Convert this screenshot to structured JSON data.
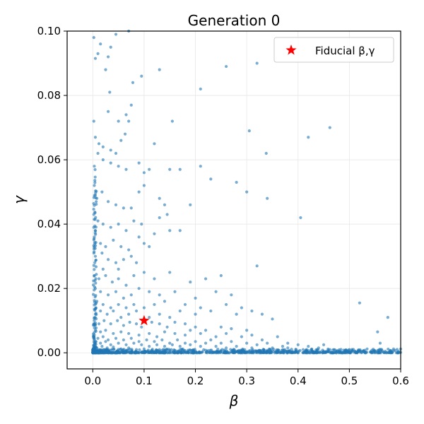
{
  "chart_data": {
    "type": "scatter",
    "title": "Generation 0",
    "xlabel": "β",
    "ylabel": "γ",
    "xlim": [
      -0.05,
      0.6
    ],
    "ylim": [
      -0.005,
      0.1
    ],
    "xticks": [
      0.0,
      0.1,
      0.2,
      0.3,
      0.4,
      0.5,
      0.6
    ],
    "xtick_labels": [
      "0.0",
      "0.1",
      "0.2",
      "0.3",
      "0.4",
      "0.5",
      "0.6"
    ],
    "yticks": [
      0.0,
      0.02,
      0.04,
      0.06,
      0.08,
      0.1
    ],
    "ytick_labels": [
      "0.00",
      "0.02",
      "0.04",
      "0.06",
      "0.08",
      "0.10"
    ],
    "grid": true,
    "legend_position": "top-right",
    "series": [
      {
        "name": "",
        "color": "#1f77b4",
        "points": [
          [
            0.002,
            0.098
          ],
          [
            0.015,
            0.096
          ],
          [
            0.045,
            0.099
          ],
          [
            0.07,
            0.1
          ],
          [
            0.035,
            0.095
          ],
          [
            0.03,
            0.092
          ],
          [
            0.01,
            0.093
          ],
          [
            0.025,
            0.088
          ],
          [
            0.078,
            0.084
          ],
          [
            0.095,
            0.086
          ],
          [
            0.13,
            0.088
          ],
          [
            0.26,
            0.089
          ],
          [
            0.32,
            0.09
          ],
          [
            0.005,
            0.0915
          ],
          [
            0.033,
            0.081
          ],
          [
            0.07,
            0.072
          ],
          [
            0.075,
            0.077
          ],
          [
            0.21,
            0.082
          ],
          [
            0.05,
            0.072
          ],
          [
            0.065,
            0.074
          ],
          [
            0.03,
            0.075
          ],
          [
            0.002,
            0.072
          ],
          [
            0.155,
            0.072
          ],
          [
            0.305,
            0.069
          ],
          [
            0.42,
            0.067
          ],
          [
            0.462,
            0.07
          ],
          [
            0.005,
            0.067
          ],
          [
            0.012,
            0.065
          ],
          [
            0.01,
            0.062
          ],
          [
            0.02,
            0.064
          ],
          [
            0.035,
            0.063
          ],
          [
            0.045,
            0.062
          ],
          [
            0.055,
            0.066
          ],
          [
            0.063,
            0.068
          ],
          [
            0.12,
            0.065
          ],
          [
            0.003,
            0.058
          ],
          [
            0.02,
            0.06
          ],
          [
            0.035,
            0.059
          ],
          [
            0.05,
            0.058
          ],
          [
            0.065,
            0.057
          ],
          [
            0.09,
            0.059
          ],
          [
            0.1,
            0.056
          ],
          [
            0.11,
            0.057
          ],
          [
            0.15,
            0.057
          ],
          [
            0.17,
            0.057
          ],
          [
            0.21,
            0.058
          ],
          [
            0.23,
            0.054
          ],
          [
            0.28,
            0.053
          ],
          [
            0.3,
            0.05
          ],
          [
            0.338,
            0.062
          ],
          [
            0.003,
            0.052
          ],
          [
            0.008,
            0.048
          ],
          [
            0.018,
            0.05
          ],
          [
            0.03,
            0.047
          ],
          [
            0.045,
            0.046
          ],
          [
            0.06,
            0.045
          ],
          [
            0.075,
            0.045
          ],
          [
            0.09,
            0.05
          ],
          [
            0.1,
            0.052
          ],
          [
            0.13,
            0.048
          ],
          [
            0.14,
            0.046
          ],
          [
            0.19,
            0.046
          ],
          [
            0.34,
            0.048
          ],
          [
            0.405,
            0.042
          ],
          [
            0.002,
            0.043
          ],
          [
            0.01,
            0.041
          ],
          [
            0.02,
            0.04
          ],
          [
            0.035,
            0.039
          ],
          [
            0.05,
            0.04
          ],
          [
            0.065,
            0.038
          ],
          [
            0.08,
            0.041
          ],
          [
            0.095,
            0.04
          ],
          [
            0.13,
            0.042
          ],
          [
            0.145,
            0.043
          ],
          [
            0.15,
            0.038
          ],
          [
            0.17,
            0.038
          ],
          [
            0.12,
            0.037
          ],
          [
            0.003,
            0.036
          ],
          [
            0.015,
            0.034
          ],
          [
            0.025,
            0.033
          ],
          [
            0.04,
            0.035
          ],
          [
            0.055,
            0.033
          ],
          [
            0.07,
            0.032
          ],
          [
            0.09,
            0.036
          ],
          [
            0.1,
            0.034
          ],
          [
            0.11,
            0.033
          ],
          [
            0.005,
            0.03
          ],
          [
            0.018,
            0.031
          ],
          [
            0.03,
            0.029
          ],
          [
            0.045,
            0.028
          ],
          [
            0.06,
            0.029
          ],
          [
            0.075,
            0.03
          ],
          [
            0.085,
            0.028
          ],
          [
            0.05,
            0.026
          ],
          [
            0.02,
            0.026
          ],
          [
            0.32,
            0.027
          ],
          [
            0.003,
            0.024
          ],
          [
            0.012,
            0.023
          ],
          [
            0.025,
            0.024
          ],
          [
            0.038,
            0.022
          ],
          [
            0.05,
            0.023
          ],
          [
            0.065,
            0.021
          ],
          [
            0.08,
            0.024
          ],
          [
            0.1,
            0.025
          ],
          [
            0.12,
            0.023
          ],
          [
            0.15,
            0.025
          ],
          [
            0.19,
            0.022
          ],
          [
            0.22,
            0.023
          ],
          [
            0.25,
            0.024
          ],
          [
            0.005,
            0.02
          ],
          [
            0.015,
            0.019
          ],
          [
            0.03,
            0.018
          ],
          [
            0.045,
            0.019
          ],
          [
            0.06,
            0.017
          ],
          [
            0.075,
            0.018
          ],
          [
            0.09,
            0.02
          ],
          [
            0.11,
            0.019
          ],
          [
            0.13,
            0.018
          ],
          [
            0.16,
            0.019
          ],
          [
            0.2,
            0.017
          ],
          [
            0.24,
            0.019
          ],
          [
            0.27,
            0.018
          ],
          [
            0.008,
            0.016
          ],
          [
            0.02,
            0.015
          ],
          [
            0.035,
            0.014
          ],
          [
            0.05,
            0.015
          ],
          [
            0.065,
            0.014
          ],
          [
            0.08,
            0.015
          ],
          [
            0.1,
            0.014
          ],
          [
            0.12,
            0.015
          ],
          [
            0.14,
            0.016
          ],
          [
            0.18,
            0.015
          ],
          [
            0.21,
            0.014
          ],
          [
            0.26,
            0.015
          ],
          [
            0.29,
            0.014
          ],
          [
            0.52,
            0.0155
          ],
          [
            0.005,
            0.012
          ],
          [
            0.015,
            0.013
          ],
          [
            0.028,
            0.012
          ],
          [
            0.04,
            0.013
          ],
          [
            0.055,
            0.011
          ],
          [
            0.07,
            0.012
          ],
          [
            0.085,
            0.013
          ],
          [
            0.11,
            0.011
          ],
          [
            0.13,
            0.012
          ],
          [
            0.15,
            0.011
          ],
          [
            0.17,
            0.013
          ],
          [
            0.2,
            0.012
          ],
          [
            0.23,
            0.013
          ],
          [
            0.28,
            0.012
          ],
          [
            0.31,
            0.013
          ],
          [
            0.33,
            0.012
          ],
          [
            0.35,
            0.0105
          ],
          [
            0.575,
            0.011
          ],
          [
            0.003,
            0.01
          ],
          [
            0.012,
            0.009
          ],
          [
            0.022,
            0.01
          ],
          [
            0.035,
            0.009
          ],
          [
            0.048,
            0.01
          ],
          [
            0.06,
            0.0085
          ],
          [
            0.072,
            0.0095
          ],
          [
            0.085,
            0.009
          ],
          [
            0.095,
            0.008
          ],
          [
            0.115,
            0.0095
          ],
          [
            0.13,
            0.009
          ],
          [
            0.145,
            0.008
          ],
          [
            0.16,
            0.0095
          ],
          [
            0.18,
            0.009
          ],
          [
            0.2,
            0.008
          ],
          [
            0.22,
            0.007
          ],
          [
            0.25,
            0.008
          ],
          [
            0.27,
            0.0075
          ],
          [
            0.3,
            0.007
          ],
          [
            0.555,
            0.0065
          ],
          [
            0.56,
            0.003
          ],
          [
            0.005,
            0.007
          ],
          [
            0.015,
            0.0065
          ],
          [
            0.025,
            0.007
          ],
          [
            0.04,
            0.006
          ],
          [
            0.055,
            0.0065
          ],
          [
            0.07,
            0.006
          ],
          [
            0.09,
            0.0055
          ],
          [
            0.11,
            0.006
          ],
          [
            0.125,
            0.005
          ],
          [
            0.14,
            0.0065
          ],
          [
            0.16,
            0.006
          ],
          [
            0.18,
            0.0055
          ],
          [
            0.19,
            0.007
          ],
          [
            0.21,
            0.006
          ],
          [
            0.24,
            0.005
          ],
          [
            0.26,
            0.006
          ],
          [
            0.29,
            0.005
          ],
          [
            0.31,
            0.0055
          ],
          [
            0.33,
            0.004
          ],
          [
            0.36,
            0.005
          ],
          [
            0.38,
            0.003
          ],
          [
            0.002,
            0.005
          ],
          [
            0.01,
            0.0045
          ],
          [
            0.02,
            0.005
          ],
          [
            0.03,
            0.004
          ],
          [
            0.045,
            0.0045
          ],
          [
            0.06,
            0.004
          ],
          [
            0.075,
            0.0045
          ],
          [
            0.09,
            0.0035
          ],
          [
            0.105,
            0.004
          ],
          [
            0.12,
            0.0035
          ],
          [
            0.135,
            0.004
          ],
          [
            0.15,
            0.003
          ],
          [
            0.165,
            0.004
          ],
          [
            0.18,
            0.003
          ],
          [
            0.2,
            0.0035
          ],
          [
            0.22,
            0.003
          ],
          [
            0.23,
            0.004
          ],
          [
            0.25,
            0.003
          ],
          [
            0.27,
            0.0035
          ],
          [
            0.3,
            0.003
          ],
          [
            0.32,
            0.0025
          ],
          [
            0.34,
            0.003
          ],
          [
            0.37,
            0.002
          ],
          [
            0.4,
            0.0025
          ],
          [
            0.42,
            0.002
          ],
          [
            0.45,
            0.0025
          ],
          [
            0.005,
            0.0035
          ],
          [
            0.015,
            0.003
          ],
          [
            0.025,
            0.0035
          ],
          [
            0.035,
            0.0025
          ],
          [
            0.05,
            0.003
          ],
          [
            0.065,
            0.0025
          ],
          [
            0.08,
            0.003
          ],
          [
            0.095,
            0.0025
          ],
          [
            0.11,
            0.002
          ],
          [
            0.125,
            0.0025
          ],
          [
            0.14,
            0.002
          ],
          [
            0.155,
            0.0025
          ],
          [
            0.17,
            0.002
          ],
          [
            0.19,
            0.0025
          ],
          [
            0.21,
            0.002
          ],
          [
            0.24,
            0.002
          ],
          [
            0.26,
            0.0015
          ],
          [
            0.28,
            0.002
          ],
          [
            0.31,
            0.0015
          ],
          [
            0.35,
            0.0015
          ],
          [
            0.38,
            0.0015
          ],
          [
            0.41,
            0.001
          ],
          [
            0.44,
            0.0015
          ],
          [
            0.47,
            0.001
          ],
          [
            0.5,
            0.001
          ],
          [
            0.53,
            0.0008
          ],
          [
            0.57,
            0.0005
          ],
          [
            0.002,
            0.002
          ],
          [
            0.008,
            0.0015
          ],
          [
            0.018,
            0.002
          ],
          [
            0.028,
            0.0015
          ],
          [
            0.04,
            0.0018
          ],
          [
            0.055,
            0.0012
          ],
          [
            0.07,
            0.0015
          ],
          [
            0.085,
            0.001
          ],
          [
            0.1,
            0.0012
          ],
          [
            0.115,
            0.0008
          ],
          [
            0.13,
            0.001
          ],
          [
            0.15,
            0.0008
          ],
          [
            0.17,
            0.001
          ],
          [
            0.19,
            0.0008
          ],
          [
            0.22,
            0.0008
          ],
          [
            0.25,
            0.0006
          ],
          [
            0.29,
            0.0005
          ],
          [
            0.33,
            0.0006
          ],
          [
            0.36,
            0.0005
          ],
          [
            0.39,
            0.0004
          ],
          [
            0.43,
            0.0004
          ],
          [
            0.46,
            0.0003
          ],
          [
            0.49,
            0.0003
          ],
          [
            0.52,
            0.0002
          ],
          [
            0.55,
            0.0002
          ],
          [
            0.58,
            0.0001
          ],
          [
            0.6,
            0.0001
          ]
        ]
      },
      {
        "name": "Fiducial β,γ",
        "color": "#ff0000",
        "marker": "star",
        "points": [
          [
            0.1,
            0.01
          ]
        ]
      }
    ],
    "dense_band": {
      "description_hidden": true,
      "y": 0.0,
      "x_range": [
        0.0,
        0.6
      ],
      "count": 900,
      "spread": 0.0012
    },
    "dense_column": {
      "x": 0.001,
      "y_range": [
        0.0,
        0.06
      ],
      "count": 140
    }
  }
}
